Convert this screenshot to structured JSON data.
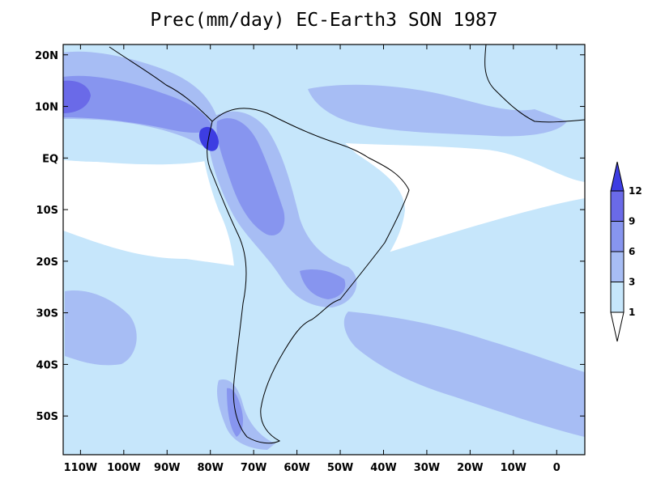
{
  "map": {
    "title": "Prec(mm/day) EC-Earth3 SON 1987",
    "lon_ticks": [
      "110W",
      "100W",
      "90W",
      "80W",
      "70W",
      "60W",
      "50W",
      "40W",
      "30W",
      "20W",
      "10W",
      "0"
    ],
    "lat_ticks": [
      "20N",
      "10N",
      "EQ",
      "10S",
      "20S",
      "30S",
      "40S",
      "50S"
    ],
    "lon_range": [
      -114,
      6.5
    ],
    "lat_range": [
      -57.5,
      22
    ],
    "lon_values": [
      -110,
      -100,
      -90,
      -80,
      -70,
      -60,
      -50,
      -40,
      -30,
      -20,
      -10,
      0
    ],
    "lat_values": [
      20,
      10,
      0,
      -10,
      -20,
      -30,
      -40,
      -50
    ]
  },
  "colorbar": {
    "levels": [
      "1",
      "3",
      "6",
      "9",
      "12"
    ],
    "colors": [
      "#ffffff",
      "#c6e6fb",
      "#a7bdf4",
      "#8795ef",
      "#6a6ae8",
      "#3d3de2"
    ]
  }
}
